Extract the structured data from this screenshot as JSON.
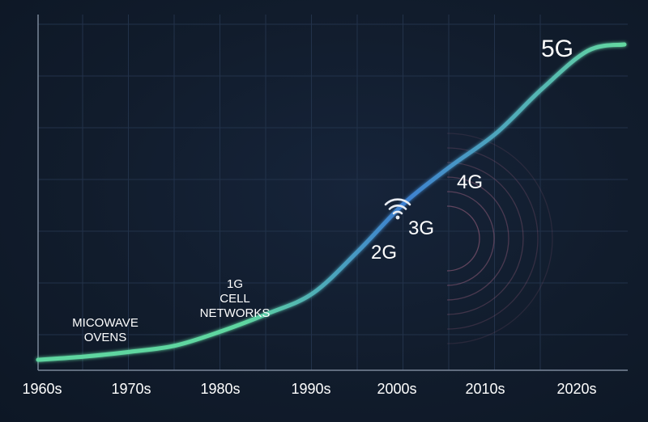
{
  "chart_data": {
    "type": "line",
    "title": "",
    "xlabel": "",
    "ylabel": "",
    "x_ticks": [
      "1960s",
      "1970s",
      "1980s",
      "1990s",
      "2000s",
      "2010s",
      "2020s"
    ],
    "xlim": [
      1960,
      2025
    ],
    "ylim": [
      0,
      100
    ],
    "grid": true,
    "series": [
      {
        "x": [
          1960,
          1965,
          1970,
          1975,
          1980,
          1985,
          1990,
          1995,
          2000,
          2005,
          2010,
          2015,
          2020,
          2024
        ],
        "y": [
          0.5,
          1.5,
          3,
          5,
          9.5,
          15,
          21.5,
          35,
          50,
          61.5,
          72,
          86,
          98,
          100
        ]
      }
    ],
    "annotations": [
      {
        "id": "microwave",
        "label_lines": [
          "MICOWAVE",
          "OVENS"
        ],
        "x": 1967
      },
      {
        "id": "1g",
        "label_lines": [
          "1G",
          "CELL",
          "NETWORKS"
        ],
        "x": 1980
      },
      {
        "id": "2g",
        "label_lines": [
          "2G"
        ],
        "x": 1999
      },
      {
        "id": "3g",
        "label_lines": [
          "3G"
        ],
        "x": 2002
      },
      {
        "id": "4g",
        "label_lines": [
          "4G"
        ],
        "x": 2007.5
      },
      {
        "id": "5g",
        "label_lines": [
          "5G"
        ],
        "x": 2020.5
      }
    ],
    "colors": {
      "background": "#111c2c",
      "grid": "#22324a",
      "axis": "#7a8799",
      "line_start": "#5fd6a0",
      "line_mid": "#3d7fd1",
      "line_end": "#64d9a0",
      "text": "#ffffff",
      "ripple": "#b06a88"
    },
    "icons": [
      "wifi-icon"
    ]
  }
}
